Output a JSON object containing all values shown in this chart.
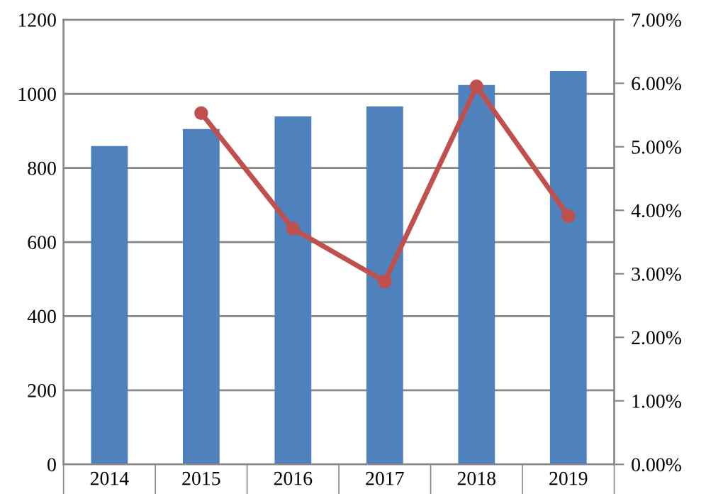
{
  "chart_data": {
    "type": "bar",
    "categories": [
      "2014",
      "2015",
      "2016",
      "2017",
      "2018",
      "2019"
    ],
    "series": [
      {
        "color": "#4f81bd",
        "values": [
          859,
          905,
          939,
          966,
          1024,
          1062
        ]
      },
      {
        "type": "line",
        "axis": "y2",
        "color": "#c0504d",
        "marker": "circle",
        "values": [
          null,
          5.53,
          3.71,
          2.88,
          5.95,
          3.91
        ]
      }
    ],
    "ylim": [
      0,
      1200
    ],
    "yticks": [
      0,
      200,
      400,
      600,
      800,
      1000,
      1200
    ],
    "y2lim": [
      0,
      7
    ],
    "y2ticks": [
      {
        "value": 0,
        "label": "0.00%"
      },
      {
        "value": 1,
        "label": "1.00%"
      },
      {
        "value": 2,
        "label": "2.00%"
      },
      {
        "value": 3,
        "label": "3.00%"
      },
      {
        "value": 4,
        "label": "4.00%"
      },
      {
        "value": 5,
        "label": "5.00%"
      },
      {
        "value": 6,
        "label": "6.00%"
      },
      {
        "value": 7,
        "label": "7.00%"
      }
    ],
    "grid": "y",
    "legend": false
  }
}
